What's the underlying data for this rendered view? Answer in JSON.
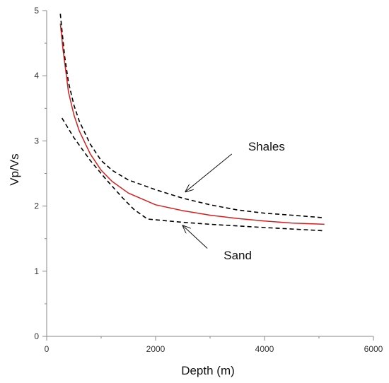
{
  "chart_data": {
    "type": "line",
    "title": "",
    "xlabel": "Depth (m)",
    "ylabel": "Vp/Vs",
    "xlim": [
      0,
      6000
    ],
    "ylim": [
      0,
      5
    ],
    "xticks": [
      0,
      2000,
      4000,
      6000
    ],
    "yticks": [
      0,
      1,
      2,
      3,
      4,
      5
    ],
    "grid": false,
    "legend": "none",
    "series": [
      {
        "color": "#d42020",
        "line_style": "solid",
        "x": [
          250,
          300,
          400,
          500,
          600,
          800,
          1000,
          1200,
          1500,
          2000,
          2500,
          3000,
          3500,
          4000,
          4500,
          5100
        ],
        "y": [
          4.8,
          4.4,
          3.75,
          3.4,
          3.15,
          2.8,
          2.55,
          2.38,
          2.2,
          2.02,
          1.93,
          1.86,
          1.81,
          1.77,
          1.74,
          1.72
        ]
      },
      {
        "color": "#000000",
        "line_style": "dashed",
        "x": [
          250,
          280,
          330,
          400,
          500,
          600,
          800,
          1000,
          1200,
          1500,
          2000,
          2500,
          3000,
          3500,
          4000,
          4500,
          5100
        ],
        "y": [
          4.95,
          4.7,
          4.3,
          3.9,
          3.55,
          3.3,
          2.95,
          2.7,
          2.55,
          2.4,
          2.25,
          2.12,
          2.02,
          1.94,
          1.89,
          1.86,
          1.82
        ]
      },
      {
        "color": "#000000",
        "line_style": "dashed",
        "x": [
          280,
          500,
          800,
          1100,
          1400,
          1600,
          1850,
          2500,
          3000,
          4000,
          5100
        ],
        "y": [
          3.35,
          3.05,
          2.7,
          2.4,
          2.12,
          1.95,
          1.8,
          1.75,
          1.72,
          1.67,
          1.62
        ]
      }
    ],
    "annotations": [
      {
        "text": "Shales",
        "x": 3700,
        "y": 2.85,
        "arrow_from": [
          3400,
          2.8
        ],
        "arrow_to": [
          2550,
          2.22
        ]
      },
      {
        "text": "Sand",
        "x": 3250,
        "y": 1.18,
        "arrow_from": [
          2950,
          1.35
        ],
        "arrow_to": [
          2500,
          1.7
        ]
      }
    ]
  }
}
